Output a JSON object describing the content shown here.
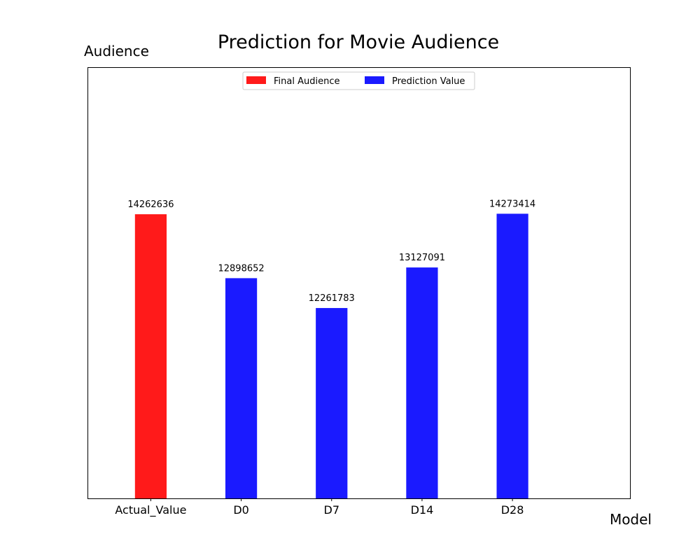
{
  "chart_data": {
    "type": "bar",
    "title": "Prediction for Movie Audience",
    "xlabel": "Model",
    "ylabel": "Audience",
    "categories": [
      "Actual_Value",
      "D0",
      "D7",
      "D14",
      "D28"
    ],
    "values": [
      14262636,
      12898652,
      12261783,
      13127091,
      14273414
    ],
    "value_labels": [
      "14262636",
      "12898652",
      "12261783",
      "13127091",
      "14273414"
    ],
    "series_assignment": [
      "Final Audience",
      "Prediction Value",
      "Prediction Value",
      "Prediction Value",
      "Prediction Value"
    ],
    "legend": [
      {
        "name": "Final Audience",
        "color": "#ff1a1a"
      },
      {
        "name": "Prediction Value",
        "color": "#1a1aff"
      }
    ],
    "legend_position": "top-center",
    "grid": false,
    "ylim": [
      8200000,
      17400000
    ],
    "y_ticks_visible": false
  }
}
